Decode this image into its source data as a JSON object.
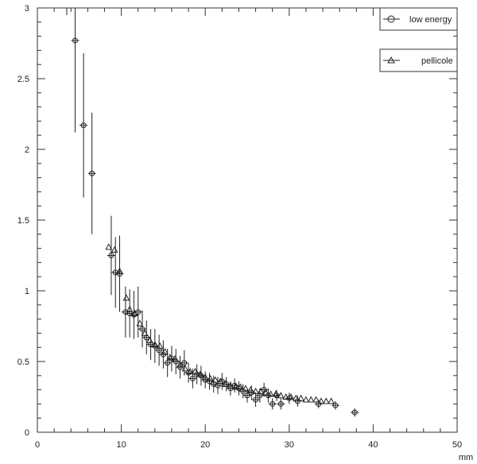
{
  "chart_data": {
    "type": "scatter",
    "title": "",
    "xlabel": "mm",
    "ylabel": "",
    "xlim": [
      0,
      50
    ],
    "ylim": [
      0,
      3
    ],
    "x_ticks": [
      "0",
      "10",
      "20",
      "30",
      "40",
      "50"
    ],
    "y_ticks": [
      "0",
      "0.5",
      "1",
      "1.5",
      "2",
      "2.5",
      "3"
    ],
    "grid": false,
    "legend": "top-right",
    "series": [
      {
        "name": "low energy",
        "marker": "circle",
        "x": [
          4.5,
          5.5,
          6.5,
          8.8,
          9.3,
          9.8,
          10.5,
          11.0,
          11.5,
          12.0,
          12.5,
          13.0,
          13.5,
          14.0,
          14.5,
          15.0,
          15.5,
          16.0,
          16.5,
          17.0,
          17.5,
          18.0,
          18.5,
          19.0,
          19.5,
          20.0,
          20.5,
          21.0,
          21.5,
          22.0,
          22.5,
          23.0,
          23.5,
          24.0,
          24.5,
          25.0,
          25.5,
          26.0,
          26.5,
          27.0,
          27.5,
          28.0,
          28.5,
          29.0,
          30.0,
          31.0,
          33.5,
          35.5,
          37.8
        ],
        "y": [
          2.77,
          2.17,
          1.83,
          1.25,
          1.13,
          1.12,
          0.85,
          0.84,
          0.83,
          0.85,
          0.73,
          0.67,
          0.62,
          0.61,
          0.58,
          0.55,
          0.49,
          0.52,
          0.5,
          0.46,
          0.49,
          0.42,
          0.38,
          0.41,
          0.4,
          0.37,
          0.36,
          0.34,
          0.33,
          0.36,
          0.34,
          0.31,
          0.33,
          0.31,
          0.29,
          0.26,
          0.28,
          0.23,
          0.26,
          0.3,
          0.26,
          0.2,
          0.26,
          0.2,
          0.24,
          0.22,
          0.2,
          0.19,
          0.14
        ],
        "err": [
          0.65,
          0.51,
          0.43,
          0.28,
          0.25,
          0.27,
          0.18,
          0.17,
          0.17,
          0.18,
          0.13,
          0.12,
          0.11,
          0.12,
          0.11,
          0.1,
          0.1,
          0.09,
          0.09,
          0.08,
          0.09,
          0.07,
          0.07,
          0.07,
          0.07,
          0.06,
          0.06,
          0.06,
          0.06,
          0.06,
          0.05,
          0.05,
          0.05,
          0.05,
          0.05,
          0.05,
          0.05,
          0.05,
          0.05,
          0.05,
          0.05,
          0.04,
          0.04,
          0.04,
          0.04,
          0.04,
          0.03,
          0.03,
          0.03
        ]
      },
      {
        "name": "pellicole",
        "marker": "triangle",
        "x": [
          8.5,
          9.2,
          9.8,
          10.6,
          11.0,
          11.6,
          12.2,
          12.8,
          13.4,
          14.0,
          14.6,
          15.2,
          15.8,
          16.4,
          17.0,
          17.6,
          18.2,
          18.8,
          19.4,
          20.0,
          20.6,
          21.2,
          21.8,
          22.4,
          23.0,
          23.6,
          24.2,
          24.8,
          25.4,
          26.0,
          26.6,
          27.2,
          27.8,
          28.4,
          29.0,
          29.6,
          30.2,
          30.8,
          31.4,
          32.0,
          32.6,
          33.2,
          33.8,
          34.4,
          35.0
        ],
        "y": [
          1.31,
          1.29,
          1.14,
          0.95,
          0.87,
          0.84,
          0.77,
          0.7,
          0.65,
          0.62,
          0.61,
          0.57,
          0.53,
          0.52,
          0.48,
          0.45,
          0.43,
          0.43,
          0.41,
          0.39,
          0.38,
          0.37,
          0.36,
          0.34,
          0.33,
          0.32,
          0.32,
          0.31,
          0.3,
          0.29,
          0.29,
          0.28,
          0.27,
          0.27,
          0.26,
          0.25,
          0.25,
          0.24,
          0.24,
          0.23,
          0.23,
          0.23,
          0.22,
          0.22,
          0.22
        ]
      }
    ]
  },
  "legend": {
    "low_energy_label": "low energy",
    "pellicole_label": "pellicole"
  }
}
